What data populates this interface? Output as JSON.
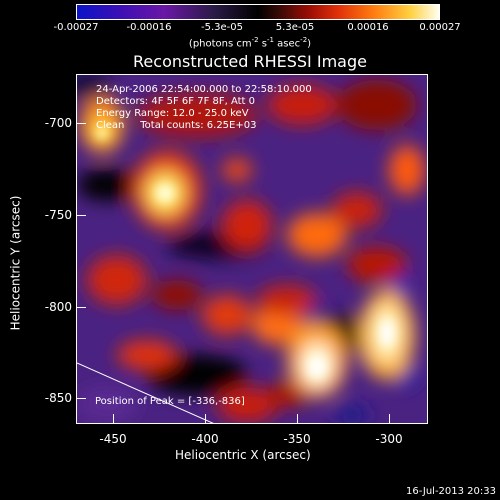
{
  "colorbar": {
    "ticks": [
      "-0.00027",
      "-0.00016",
      "-5.3e-05",
      "5.3e-05",
      "0.00016",
      "0.00027"
    ],
    "units_main": "(photons cm",
    "units_exp1": "-2",
    "units_mid": " s",
    "units_exp2": "-1",
    "units_end": " asec",
    "units_exp3": "-2",
    "units_close": ")"
  },
  "title": "Reconstructed RHESSI Image",
  "info": {
    "time": "24-Apr-2006 22:54:00.000 to 22:58:10.000",
    "detectors": "Detectors: 4F 5F 6F 7F 8F, Att 0",
    "energy": "Energy Range: 12.0 - 25.0 keV",
    "clean": "Clean     Total counts: 6.25E+03"
  },
  "peak": "Position of Peak = [-336,-836]",
  "axes": {
    "ylabel": "Heliocentric Y (arcsec)",
    "xlabel": "Heliocentric X (arcsec)",
    "yticks": [
      "-700",
      "-750",
      "-800",
      "-850"
    ],
    "xticks": [
      "-450",
      "-400",
      "-350",
      "-300"
    ]
  },
  "timestamp": "16-Jul-2013 20:33"
}
